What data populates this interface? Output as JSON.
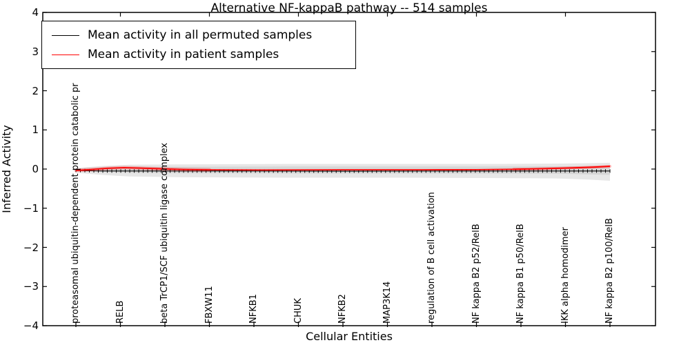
{
  "title": "Alternative NF-kappaB pathway -- 514 samples",
  "axes": {
    "xlabel": "Cellular Entities",
    "ylabel": "Inferred Activity"
  },
  "legend": {
    "items": [
      {
        "label": "Mean activity in all permuted samples",
        "color": "#000000"
      },
      {
        "label": "Mean activity in patient samples",
        "color": "#ff0000"
      }
    ]
  },
  "chart_data": {
    "type": "line",
    "title": "Alternative NF-kappaB pathway -- 514 samples",
    "xlabel": "Cellular Entities",
    "ylabel": "Inferred Activity",
    "ylim": [
      -4,
      4
    ],
    "yticks": [
      4,
      3,
      2,
      1,
      0,
      -1,
      -2,
      -3,
      -4
    ],
    "ytick_labels": [
      "4",
      "3",
      "2",
      "1",
      "0",
      "−1",
      "−2",
      "−3",
      "−4"
    ],
    "grid": false,
    "legend_position": "upper left",
    "categories": [
      "proteasomal ubiquitin-dependent protein catabolic pr",
      "RELB",
      "beta TrCP1/SCF ubiquitin ligase complex",
      "FBXW11",
      "NFKB1",
      "CHUK",
      "NFKB2",
      "MAP3K14",
      "regulation of B cell activation",
      "NF kappa B2 p52/RelB",
      "NF kappa B1 p50/RelB",
      "IKK alpha homodimer",
      "NF kappa B2 p100/RelB"
    ],
    "top_ticks_at_category_indices": [
      1,
      3,
      5,
      7,
      9,
      11
    ],
    "series": [
      {
        "name": "Mean activity in all permuted samples",
        "color": "#000000",
        "style": "line-with-tick-markers",
        "marker_count": 120,
        "points": [
          {
            "x": 0.0,
            "y": -0.035
          },
          {
            "x": 0.05,
            "y": -0.05
          },
          {
            "x": 0.3,
            "y": -0.05
          },
          {
            "x": 0.5,
            "y": -0.055
          },
          {
            "x": 0.75,
            "y": -0.05
          },
          {
            "x": 1.0,
            "y": -0.05
          }
        ]
      },
      {
        "name": "Mean activity in patient samples",
        "color": "#ff0000",
        "style": "line",
        "points": [
          {
            "x": 0.0,
            "y": -0.035
          },
          {
            "x": 0.03,
            "y": -0.01
          },
          {
            "x": 0.06,
            "y": 0.02
          },
          {
            "x": 0.09,
            "y": 0.035
          },
          {
            "x": 0.12,
            "y": 0.025
          },
          {
            "x": 0.16,
            "y": 0.005
          },
          {
            "x": 0.2,
            "y": -0.01
          },
          {
            "x": 0.25,
            "y": -0.02
          },
          {
            "x": 0.35,
            "y": -0.025
          },
          {
            "x": 0.5,
            "y": -0.02
          },
          {
            "x": 0.65,
            "y": -0.02
          },
          {
            "x": 0.75,
            "y": -0.015
          },
          {
            "x": 0.82,
            "y": -0.005
          },
          {
            "x": 0.88,
            "y": 0.01
          },
          {
            "x": 0.93,
            "y": 0.03
          },
          {
            "x": 0.97,
            "y": 0.05
          },
          {
            "x": 1.0,
            "y": 0.07
          }
        ]
      }
    ],
    "band": {
      "outer_color": "#e7e7e7",
      "inner_color": "#d6d6d6",
      "points": [
        {
          "x": 0.0,
          "upper": 0.02,
          "lower": -0.09
        },
        {
          "x": 0.02,
          "upper": 0.05,
          "lower": -0.12
        },
        {
          "x": 0.05,
          "upper": 0.08,
          "lower": -0.15
        },
        {
          "x": 0.1,
          "upper": 0.11,
          "lower": -0.19
        },
        {
          "x": 0.2,
          "upper": 0.12,
          "lower": -0.21
        },
        {
          "x": 0.4,
          "upper": 0.13,
          "lower": -0.22
        },
        {
          "x": 0.6,
          "upper": 0.13,
          "lower": -0.22
        },
        {
          "x": 0.8,
          "upper": 0.13,
          "lower": -0.23
        },
        {
          "x": 0.9,
          "upper": 0.14,
          "lower": -0.24
        },
        {
          "x": 0.96,
          "upper": 0.15,
          "lower": -0.27
        },
        {
          "x": 1.0,
          "upper": 0.16,
          "lower": -0.3
        }
      ]
    }
  }
}
